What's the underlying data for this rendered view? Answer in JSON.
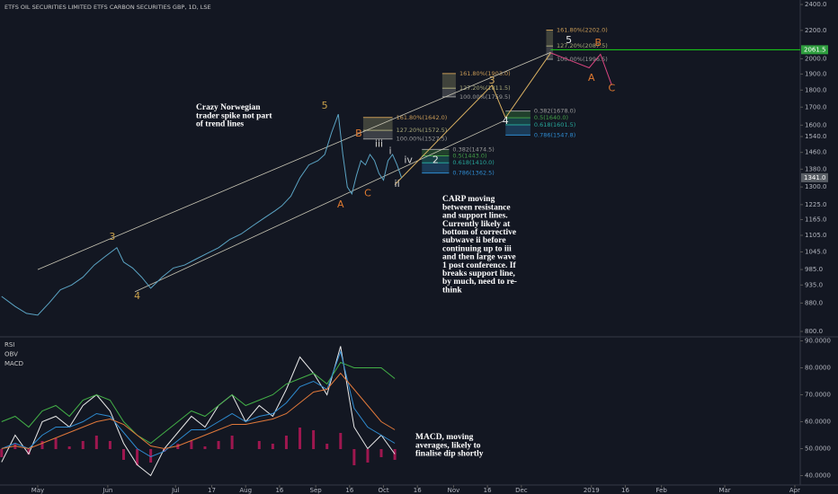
{
  "chart_data": [
    {
      "type": "line",
      "title": "ETFS OIL SECURITIES LIMITED ETFS CARBON SECURITIES GBP, 1D, LSE",
      "log_scale": true,
      "xlim": [
        -16.7,
        337.4
      ],
      "xticks": [
        {
          "value": 0,
          "label": "May"
        },
        {
          "value": 31,
          "label": "Jun"
        },
        {
          "value": 61,
          "label": "Jul"
        },
        {
          "value": 77,
          "label": "17"
        },
        {
          "value": 92,
          "label": "Aug"
        },
        {
          "value": 107,
          "label": "16"
        },
        {
          "value": 123,
          "label": "Sep"
        },
        {
          "value": 138,
          "label": "16"
        },
        {
          "value": 153,
          "label": "Oct"
        },
        {
          "value": 168,
          "label": "16"
        },
        {
          "value": 184,
          "label": "Nov"
        },
        {
          "value": 199,
          "label": "16"
        },
        {
          "value": 214,
          "label": "Dec"
        },
        {
          "value": 245,
          "label": "2019"
        },
        {
          "value": 260,
          "label": "16"
        },
        {
          "value": 276,
          "label": "Feb"
        },
        {
          "value": 304,
          "label": "Mar"
        },
        {
          "value": 335,
          "label": "Apr"
        }
      ],
      "ylim": [
        800,
        2400
      ],
      "yticks": [
        {
          "value": 2400,
          "label": "2400.0"
        },
        {
          "value": 2200,
          "label": "2200.0"
        },
        {
          "value": 2000,
          "label": "2000.0"
        },
        {
          "value": 1900,
          "label": "1900.0"
        },
        {
          "value": 1800,
          "label": "1800.0"
        },
        {
          "value": 1700,
          "label": "1700.0"
        },
        {
          "value": 1600,
          "label": "1600.0"
        },
        {
          "value": 1540,
          "label": "1540.0"
        },
        {
          "value": 1460,
          "label": "1460.0"
        },
        {
          "value": 1380,
          "label": "1380.0"
        },
        {
          "value": 1300,
          "label": "1300.0"
        },
        {
          "value": 1225,
          "label": "1225.0"
        },
        {
          "value": 1165,
          "label": "1165.0"
        },
        {
          "value": 1105,
          "label": "1105.0"
        },
        {
          "value": 1045,
          "label": "1045.0"
        },
        {
          "value": 985,
          "label": "985.0"
        },
        {
          "value": 935,
          "label": "935.0"
        },
        {
          "value": 880,
          "label": "880.0"
        },
        {
          "value": 800,
          "label": "800.0"
        }
      ],
      "x": [
        -16,
        -10,
        -5,
        0,
        5,
        10,
        15,
        20,
        25,
        30,
        35,
        38,
        42,
        46,
        50,
        55,
        60,
        65,
        70,
        75,
        80,
        85,
        90,
        95,
        100,
        105,
        108,
        112,
        116,
        120,
        124,
        127,
        130,
        133,
        135,
        137,
        139,
        141,
        143,
        145,
        147,
        149,
        151,
        153,
        155,
        157,
        159,
        161
      ],
      "series": [
        {
          "color": "#5ba4c4",
          "values": [
            900,
            870,
            850,
            845,
            880,
            920,
            935,
            960,
            1000,
            1030,
            1060,
            1010,
            990,
            960,
            925,
            960,
            990,
            1000,
            1020,
            1040,
            1060,
            1090,
            1110,
            1140,
            1170,
            1200,
            1220,
            1260,
            1340,
            1400,
            1420,
            1450,
            1560,
            1660,
            1450,
            1300,
            1270,
            1350,
            1420,
            1400,
            1450,
            1420,
            1360,
            1330,
            1420,
            1450,
            1400,
            1340
          ]
        }
      ],
      "price_labels": [
        {
          "value": 2061.5,
          "label": "2061.5",
          "color": "#2e9e3e",
          "line_from": 227,
          "line_color": "#19d619"
        },
        {
          "value": 1341.0,
          "label": "1341.0",
          "color": "#5a5f66"
        }
      ],
      "trend_lines": [
        {
          "x": [
            0,
            227
          ],
          "y": [
            985,
            2044
          ],
          "color": "#c9c6b4"
        },
        {
          "x": [
            43,
            206
          ],
          "y": [
            914,
            1622
          ],
          "color": "#c9c6b4"
        }
      ],
      "wave_path": {
        "color": "#d9b062",
        "x": [
          158,
          201,
          207,
          227
        ],
        "y": [
          1310,
          1830,
          1640,
          2040
        ]
      },
      "correction_path": {
        "color": "#d9457f",
        "x": [
          227,
          244,
          249,
          254
        ],
        "y": [
          2040,
          1940,
          2030,
          1830
        ]
      },
      "fib_groups": [
        {
          "x": [
            144,
            157
          ],
          "levels": [
            {
              "value": 1642.0,
              "label": "161.80%(1642.0)",
              "color": "#c89a55"
            },
            {
              "value": 1572.5,
              "label": "127.20%(1572.5)",
              "color": "#a8a878"
            },
            {
              "value": 1527.5,
              "label": "100.00%(1527.5)",
              "color": "#9a9a9a"
            }
          ]
        },
        {
          "x": [
            179,
            185
          ],
          "levels": [
            {
              "value": 1903.0,
              "label": "161.80%(1903.0)",
              "color": "#c89a55"
            },
            {
              "value": 1811.5,
              "label": "127.20%(1811.5)",
              "color": "#a8a878"
            },
            {
              "value": 1759.5,
              "label": "100.00%(1759.5)",
              "color": "#9a9a9a"
            }
          ]
        },
        {
          "x": [
            225,
            228
          ],
          "levels": [
            {
              "value": 2202.0,
              "label": "161.80%(2202.0)",
              "color": "#c89a55"
            },
            {
              "value": 2087.5,
              "label": "127.20%(2087.5)",
              "color": "#a8a878"
            },
            {
              "value": 1996.5,
              "label": "100.00%(1996.5)",
              "color": "#9a9a9a"
            }
          ]
        },
        {
          "x": [
            170,
            182
          ],
          "levels": [
            {
              "value": 1474.5,
              "label": "0.382(1474.5)",
              "color": "#9a9a9a"
            },
            {
              "value": 1443.0,
              "label": "0.5(1443.0)",
              "color": "#43a047"
            },
            {
              "value": 1410.0,
              "label": "0.618(1410.0)",
              "color": "#26a69a"
            },
            {
              "value": 1362.5,
              "label": "0.786(1362.5)",
              "color": "#2e8bd0"
            }
          ]
        },
        {
          "x": [
            207,
            218
          ],
          "levels": [
            {
              "value": 1678.0,
              "label": "0.382(1678.0)",
              "color": "#9a9a9a"
            },
            {
              "value": 1640.0,
              "label": "0.5(1640.0)",
              "color": "#43a047"
            },
            {
              "value": 1601.5,
              "label": "0.618(1601.5)",
              "color": "#26a69a"
            },
            {
              "value": 1547.8,
              "label": "0.786(1547.8)",
              "color": "#2e8bd0"
            }
          ]
        }
      ],
      "wave_labels": [
        {
          "text": "3",
          "x": 33,
          "y": 1099,
          "color": "#c8a04a"
        },
        {
          "text": "4",
          "x": 44,
          "y": 900,
          "color": "#c8a04a"
        },
        {
          "text": "5",
          "x": 127,
          "y": 1706,
          "color": "#c8a04a"
        },
        {
          "text": "B",
          "x": 142,
          "y": 1553,
          "color": "#e07a30"
        },
        {
          "text": "A",
          "x": 134,
          "y": 1225,
          "color": "#e07a30"
        },
        {
          "text": "C",
          "x": 146,
          "y": 1271,
          "color": "#e07a30"
        },
        {
          "text": "i",
          "x": 156,
          "y": 1466,
          "color": "#d0d0d0"
        },
        {
          "text": "iii",
          "x": 151,
          "y": 1500,
          "color": "#d0d0d0"
        },
        {
          "text": "iv",
          "x": 164,
          "y": 1422,
          "color": "#d0d0d0"
        },
        {
          "text": "2",
          "x": 176,
          "y": 1422,
          "color": "#e6e6e6"
        },
        {
          "text": "ii",
          "x": 159,
          "y": 1312,
          "color": "#d0d0d0"
        },
        {
          "text": "3",
          "x": 201,
          "y": 1858,
          "color": "#d9b062"
        },
        {
          "text": "4",
          "x": 207,
          "y": 1622,
          "color": "#e6e6e6"
        },
        {
          "text": "5",
          "x": 235,
          "y": 2128,
          "color": "#e6e6e6"
        },
        {
          "text": "A",
          "x": 245,
          "y": 1875,
          "color": "#e07a30"
        },
        {
          "text": "B",
          "x": 248,
          "y": 2109,
          "color": "#e07a30"
        },
        {
          "text": "C",
          "x": 254,
          "y": 1811,
          "color": "#e07a30"
        }
      ],
      "notes": [
        {
          "lines": [
            "Crazy Norwegian",
            "trader spike not part",
            "of trend lines"
          ]
        },
        {
          "lines": [
            "CARP moving",
            "between resistance",
            "and support lines.",
            "Currently likely at",
            "bottom of corrective",
            "subwave ii before",
            "continuing up to iii",
            "and then large wave",
            "1 post conference.  If",
            "breaks support line,",
            "by much, need to re-",
            "think"
          ]
        },
        {
          "lines": [
            "MACD, moving",
            "averages, likely to",
            "finalise dip shortly"
          ]
        }
      ]
    },
    {
      "type": "line",
      "legend": [
        "RSI",
        "OBV",
        "MACD"
      ],
      "ylim": [
        36.5,
        91.5
      ],
      "yticks": [
        {
          "value": 90,
          "label": "90.0000"
        },
        {
          "value": 80,
          "label": "80.0000"
        },
        {
          "value": 70,
          "label": "70.0000"
        },
        {
          "value": 60,
          "label": "60.0000"
        },
        {
          "value": 50,
          "label": "50.0000"
        },
        {
          "value": 40,
          "label": "40.0000"
        }
      ],
      "x": [
        -16,
        -10,
        -4,
        2,
        8,
        14,
        20,
        26,
        32,
        38,
        44,
        50,
        56,
        62,
        68,
        74,
        80,
        86,
        92,
        98,
        104,
        110,
        116,
        122,
        128,
        134,
        140,
        146,
        152,
        158
      ],
      "series": [
        {
          "name": "RSI",
          "color": "#e8e8e8",
          "values": [
            45,
            55,
            48,
            60,
            62,
            58,
            66,
            70,
            64,
            52,
            44,
            40,
            50,
            56,
            62,
            58,
            66,
            70,
            60,
            66,
            62,
            72,
            84,
            78,
            70,
            88,
            58,
            50,
            55,
            48
          ]
        },
        {
          "name": "OBV",
          "color": "#43b047",
          "values": [
            60,
            62,
            58,
            64,
            66,
            62,
            68,
            70,
            68,
            60,
            55,
            52,
            56,
            60,
            64,
            62,
            66,
            70,
            66,
            68,
            70,
            74,
            76,
            78,
            74,
            82,
            80,
            80,
            80,
            76
          ]
        },
        {
          "name": "MACD",
          "color": "#2e8bd0",
          "values": [
            50,
            52,
            50,
            55,
            58,
            58,
            60,
            63,
            62,
            56,
            50,
            47,
            49,
            53,
            57,
            57,
            60,
            63,
            60,
            62,
            63,
            67,
            73,
            75,
            72,
            86,
            65,
            58,
            55,
            52
          ]
        },
        {
          "color": "#e0783a",
          "values": [
            50,
            51,
            50,
            52,
            54,
            56,
            58,
            60,
            61,
            59,
            55,
            51,
            50,
            51,
            53,
            55,
            57,
            59,
            59,
            60,
            61,
            63,
            67,
            71,
            72,
            78,
            72,
            66,
            60,
            57
          ]
        }
      ],
      "histogram": {
        "color": "#c2185b",
        "values": [
          -3,
          2,
          -2,
          3,
          4,
          1,
          3,
          5,
          3,
          -4,
          -6,
          -5,
          -1,
          2,
          3,
          1,
          3,
          5,
          0,
          3,
          2,
          5,
          8,
          7,
          2,
          6,
          -6,
          -5,
          -3,
          -4
        ]
      }
    }
  ]
}
